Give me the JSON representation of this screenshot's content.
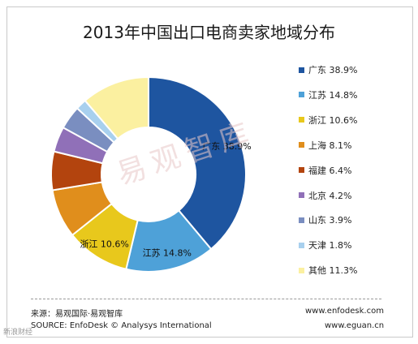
{
  "chart_data": {
    "type": "pie",
    "title": "2013年中国出口电商卖家地域分布",
    "categories": [
      "广东",
      "江苏",
      "浙江",
      "上海",
      "福建",
      "北京",
      "山东",
      "天津",
      "其他"
    ],
    "values": [
      38.9,
      14.8,
      10.6,
      8.1,
      6.4,
      4.2,
      3.9,
      1.8,
      11.3
    ],
    "legend_labels": [
      "广东 38.9%",
      "江苏 14.8%",
      "浙江 10.6%",
      "上海 8.1%",
      "福建 6.4%",
      "北京 4.2%",
      "山东 3.9%",
      "天津 1.8%",
      "其他 11.3%"
    ],
    "colors": [
      "#1e55a0",
      "#4ea1d8",
      "#e8c81c",
      "#e08e1c",
      "#b3440e",
      "#9070b8",
      "#7a8ec0",
      "#a8d0ee",
      "#fbf0a0"
    ],
    "data_labels": [
      {
        "index": 0,
        "text": "广东 38.9%"
      },
      {
        "index": 1,
        "text": "江苏 14.8%"
      },
      {
        "index": 2,
        "text": "浙江 10.6%"
      }
    ],
    "legend_position": "right",
    "donut": true
  },
  "footer": {
    "source_cn": "来源：易观国际·易观智库",
    "source_en": "SOURCE: EnfoDesk © Analysys International",
    "url1": "www.enfodesk.com",
    "url2": "www.eguan.cn"
  },
  "watermark": "易观智库",
  "weibo_mark": "新浪财经"
}
